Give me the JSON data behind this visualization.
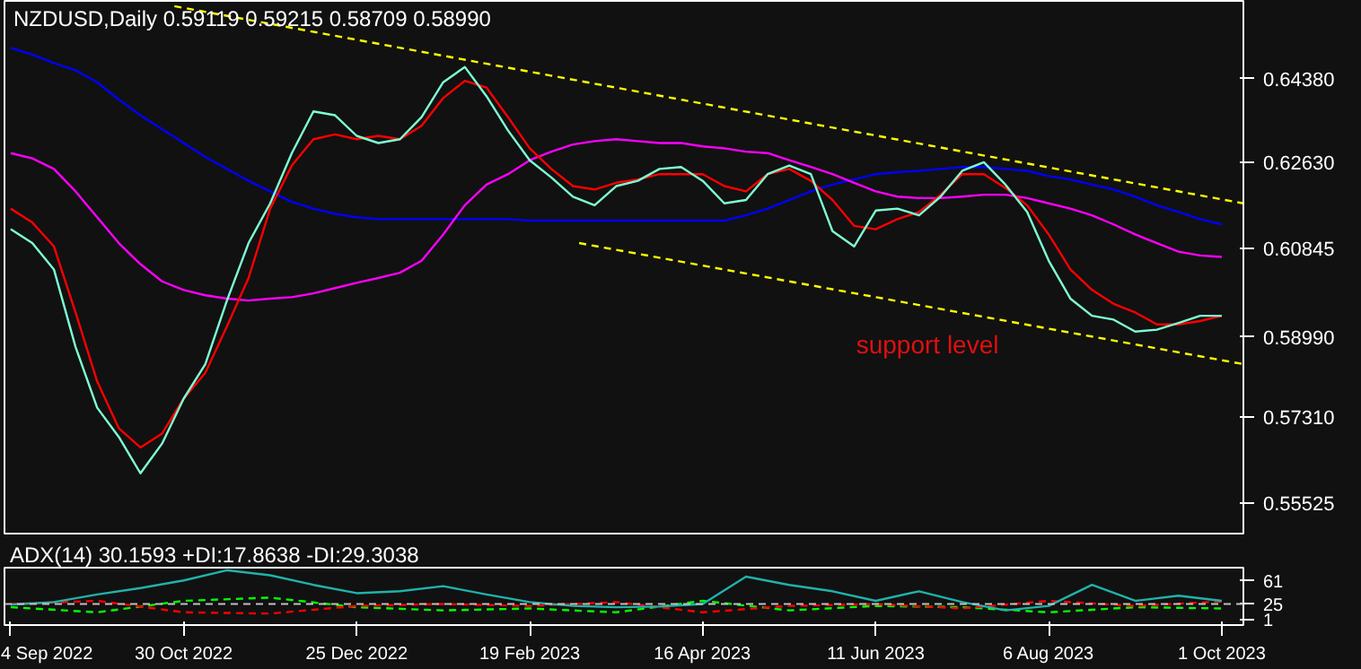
{
  "chart_data": [
    {
      "type": "line",
      "title": "NZDUSD,Daily  0.59119 0.59215 0.58709 0.58990",
      "tick_labels": "y",
      "marker": "none",
      "line_style": "solid",
      "xlim": [
        "2022-09-02",
        "2023-10-08"
      ],
      "ylim": [
        0.5488,
        0.6601
      ],
      "yticks": [
        {
          "value": 0.6438,
          "label": "0.64380"
        },
        {
          "value": 0.6263,
          "label": "0.62630"
        },
        {
          "value": 0.60845,
          "label": "0.60845"
        },
        {
          "value": 0.5899,
          "label": "0.58990"
        },
        {
          "value": 0.5731,
          "label": "0.57310"
        },
        {
          "value": 0.55525,
          "label": "0.55525"
        }
      ],
      "x": [
        "2022-09-04",
        "2022-09-11",
        "2022-09-18",
        "2022-09-25",
        "2022-10-02",
        "2022-10-09",
        "2022-10-16",
        "2022-10-23",
        "2022-10-30",
        "2022-11-06",
        "2022-11-13",
        "2022-11-20",
        "2022-11-27",
        "2022-12-04",
        "2022-12-11",
        "2022-12-18",
        "2022-12-25",
        "2023-01-01",
        "2023-01-08",
        "2023-01-15",
        "2023-01-22",
        "2023-01-29",
        "2023-02-05",
        "2023-02-12",
        "2023-02-19",
        "2023-02-26",
        "2023-03-05",
        "2023-03-12",
        "2023-03-19",
        "2023-03-26",
        "2023-04-02",
        "2023-04-09",
        "2023-04-16",
        "2023-04-23",
        "2023-04-30",
        "2023-05-07",
        "2023-05-14",
        "2023-05-21",
        "2023-05-28",
        "2023-06-04",
        "2023-06-11",
        "2023-06-18",
        "2023-06-25",
        "2023-07-02",
        "2023-07-09",
        "2023-07-16",
        "2023-07-23",
        "2023-07-30",
        "2023-08-06",
        "2023-08-13",
        "2023-08-20",
        "2023-08-27",
        "2023-09-03",
        "2023-09-10",
        "2023-09-17",
        "2023-09-24",
        "2023-10-01"
      ],
      "series": [
        {
          "color": "#0000ff",
          "values": [
            0.6503,
            0.6489,
            0.6471,
            0.6456,
            0.6431,
            0.6395,
            0.6362,
            0.6333,
            0.6304,
            0.6275,
            0.625,
            0.6225,
            0.6203,
            0.6181,
            0.6167,
            0.6156,
            0.6149,
            0.6145,
            0.6145,
            0.6145,
            0.6145,
            0.6145,
            0.6145,
            0.6145,
            0.6142,
            0.6142,
            0.6142,
            0.6142,
            0.6142,
            0.6142,
            0.6142,
            0.6142,
            0.6142,
            0.6142,
            0.6153,
            0.6167,
            0.6185,
            0.6203,
            0.6217,
            0.6228,
            0.6239,
            0.6243,
            0.6246,
            0.625,
            0.6254,
            0.6254,
            0.625,
            0.6246,
            0.6235,
            0.6228,
            0.6217,
            0.6207,
            0.6192,
            0.6174,
            0.616,
            0.6145,
            0.6134
          ]
        },
        {
          "color": "#ff00ff",
          "values": [
            0.6283,
            0.6272,
            0.625,
            0.6203,
            0.6149,
            0.6095,
            0.6051,
            0.6015,
            0.5997,
            0.5986,
            0.5979,
            0.5975,
            0.5979,
            0.5982,
            0.599,
            0.6001,
            0.6012,
            0.6022,
            0.6033,
            0.6058,
            0.6113,
            0.6174,
            0.6217,
            0.6239,
            0.6268,
            0.6286,
            0.6301,
            0.6308,
            0.6312,
            0.6308,
            0.6304,
            0.6304,
            0.6297,
            0.6293,
            0.6286,
            0.6283,
            0.6268,
            0.6254,
            0.6239,
            0.6221,
            0.6203,
            0.6192,
            0.6189,
            0.6189,
            0.6192,
            0.6196,
            0.6196,
            0.6189,
            0.6178,
            0.6167,
            0.6153,
            0.6134,
            0.6113,
            0.6095,
            0.6077,
            0.6069,
            0.6066
          ]
        },
        {
          "color": "#ff0000",
          "values": [
            0.6167,
            0.6138,
            0.6088,
            0.595,
            0.5806,
            0.5708,
            0.5668,
            0.5697,
            0.577,
            0.5824,
            0.5921,
            0.6022,
            0.6167,
            0.6257,
            0.6312,
            0.6322,
            0.6312,
            0.6319,
            0.6312,
            0.634,
            0.6398,
            0.6434,
            0.642,
            0.6358,
            0.6293,
            0.625,
            0.6214,
            0.6207,
            0.6221,
            0.6228,
            0.6239,
            0.6239,
            0.6239,
            0.6214,
            0.6203,
            0.6239,
            0.625,
            0.6225,
            0.6185,
            0.6131,
            0.6124,
            0.6145,
            0.616,
            0.6196,
            0.6239,
            0.6239,
            0.621,
            0.6174,
            0.6113,
            0.604,
            0.5997,
            0.5968,
            0.595,
            0.5925,
            0.5925,
            0.5932,
            0.5943
          ]
        },
        {
          "color": "#7fffd4",
          "values": [
            0.6124,
            0.6095,
            0.604,
            0.5878,
            0.5751,
            0.569,
            0.5614,
            0.5676,
            0.577,
            0.5842,
            0.5975,
            0.6095,
            0.6178,
            0.6283,
            0.637,
            0.6362,
            0.6319,
            0.6304,
            0.6312,
            0.6358,
            0.6431,
            0.6463,
            0.6402,
            0.633,
            0.6268,
            0.6232,
            0.6192,
            0.6174,
            0.6214,
            0.6225,
            0.625,
            0.6254,
            0.6225,
            0.6178,
            0.6185,
            0.6239,
            0.6257,
            0.6239,
            0.612,
            0.6088,
            0.6163,
            0.6167,
            0.6153,
            0.6192,
            0.6246,
            0.6264,
            0.6217,
            0.616,
            0.6058,
            0.5979,
            0.5943,
            0.5935,
            0.591,
            0.5914,
            0.5928,
            0.5943,
            0.5943
          ]
        },
        {
          "color": "#ffff00",
          "line_style": "dashed",
          "x": [
            "2022-10-27",
            "2023-10-08"
          ],
          "values": [
            0.659,
            0.6178
          ]
        },
        {
          "color": "#ffff00",
          "line_style": "dashed",
          "x": [
            "2023-03-07",
            "2023-10-08"
          ],
          "values": [
            0.6095,
            0.5842
          ]
        }
      ],
      "annotations": [
        "support level"
      ]
    },
    {
      "type": "line",
      "title": "ADX(14) 30.1593 +DI:17.8638 -DI:29.3038",
      "marker": "none",
      "line_style": "solid",
      "xlim": [
        "2022-09-02",
        "2023-10-08"
      ],
      "xticks": [
        {
          "value": "2022-09-04",
          "label": "4 Sep 2022"
        },
        {
          "value": "2022-10-30",
          "label": "30 Oct 2022"
        },
        {
          "value": "2022-12-25",
          "label": "25 Dec 2022"
        },
        {
          "value": "2023-02-19",
          "label": "19 Feb 2023"
        },
        {
          "value": "2023-04-16",
          "label": "16 Apr 2023"
        },
        {
          "value": "2023-06-11",
          "label": "11 Jun 2023"
        },
        {
          "value": "2023-08-06",
          "label": "6 Aug 2023"
        },
        {
          "value": "2023-10-01",
          "label": "1 Oct 2023"
        }
      ],
      "ylim": [
        -8,
        82
      ],
      "yticks": [
        61,
        25,
        1
      ],
      "ref_lines": [
        {
          "axis": "y",
          "value": 25,
          "color": "#c0c0c0",
          "line_style": "dashed"
        }
      ],
      "series": [
        {
          "color": "#00ff00",
          "line_style": "dashed",
          "x": [
            "2022-09-04",
            "2022-10-02",
            "2022-10-30",
            "2022-11-27",
            "2022-12-25",
            "2023-01-22",
            "2023-02-19",
            "2023-03-19",
            "2023-04-16",
            "2023-05-14",
            "2023-06-11",
            "2023-07-09",
            "2023-08-06",
            "2023-09-03",
            "2023-10-01"
          ],
          "values": [
            20,
            12,
            30,
            35,
            20,
            15,
            18,
            12,
            30,
            15,
            22,
            20,
            12,
            20,
            18
          ]
        },
        {
          "color": "#ff0000",
          "line_style": "dashed",
          "x": [
            "2022-09-04",
            "2022-10-02",
            "2022-10-30",
            "2022-11-27",
            "2022-12-25",
            "2023-01-22",
            "2023-02-19",
            "2023-03-19",
            "2023-04-16",
            "2023-05-14",
            "2023-06-11",
            "2023-07-09",
            "2023-08-06",
            "2023-09-03",
            "2023-10-01"
          ],
          "values": [
            25,
            30,
            12,
            10,
            22,
            25,
            22,
            28,
            12,
            22,
            25,
            18,
            30,
            22,
            29
          ]
        },
        {
          "color": "#20b2aa",
          "x": [
            "2022-09-04",
            "2022-09-18",
            "2022-10-02",
            "2022-10-16",
            "2022-10-30",
            "2022-11-13",
            "2022-11-27",
            "2022-12-11",
            "2022-12-25",
            "2023-01-08",
            "2023-01-22",
            "2023-02-05",
            "2023-02-19",
            "2023-03-05",
            "2023-03-19",
            "2023-04-02",
            "2023-04-16",
            "2023-04-30",
            "2023-05-14",
            "2023-05-28",
            "2023-06-11",
            "2023-06-25",
            "2023-07-09",
            "2023-07-23",
            "2023-08-06",
            "2023-08-20",
            "2023-09-03",
            "2023-09-17",
            "2023-10-01"
          ],
          "values": [
            24,
            28,
            40,
            50,
            62,
            78,
            70,
            55,
            42,
            45,
            53,
            40,
            28,
            22,
            20,
            21,
            25,
            68,
            55,
            45,
            30,
            45,
            28,
            15,
            22,
            55,
            30,
            38,
            30
          ]
        }
      ]
    }
  ]
}
